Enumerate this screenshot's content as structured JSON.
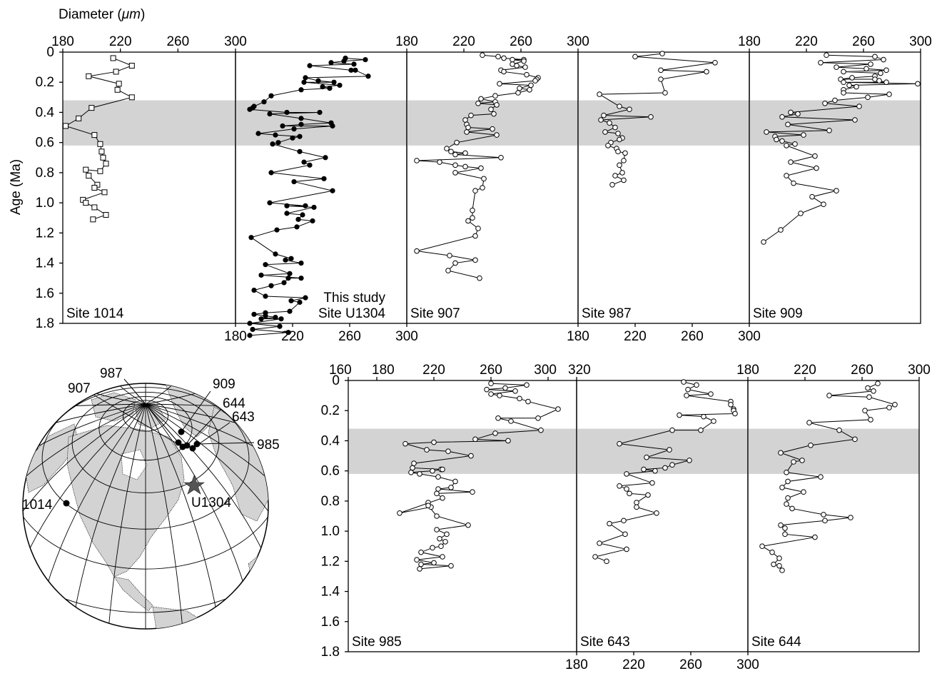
{
  "figure": {
    "x_axis_title": "Diameter",
    "x_axis_unit": "μm",
    "y_axis_title": "Age (Ma)",
    "highlight_band_ma": [
      0.32,
      0.62
    ],
    "band_color": "#d3d3d3"
  },
  "map": {
    "site_labels": [
      "987",
      "907",
      "909",
      "644",
      "643",
      "985",
      "1014",
      "U1304"
    ],
    "land_color": "#d3d3d3",
    "marker_icons": [
      "filled-circle-marker",
      "star-marker"
    ]
  },
  "chart_data": [
    {
      "type": "line",
      "panel": "Site 1014",
      "title": "Site 1014",
      "marker": "open-square",
      "xlim": [
        180,
        300
      ],
      "ylim": [
        0,
        1.8
      ],
      "x_ticks": [
        180,
        220,
        260,
        300
      ],
      "y_ticks": [
        0,
        0.2,
        0.4,
        0.6,
        0.8,
        1.0,
        1.2,
        1.4,
        1.6,
        1.8
      ],
      "x": [
        215,
        228,
        217,
        198,
        219,
        218,
        228,
        200,
        191,
        182,
        202,
        206,
        207,
        208,
        210,
        206,
        196,
        198,
        204,
        202,
        209,
        194,
        196,
        202,
        210,
        201
      ],
      "y": [
        0.04,
        0.09,
        0.13,
        0.16,
        0.21,
        0.25,
        0.3,
        0.37,
        0.44,
        0.49,
        0.55,
        0.61,
        0.66,
        0.7,
        0.74,
        0.79,
        0.78,
        0.82,
        0.88,
        0.9,
        0.93,
        0.98,
        1.0,
        1.03,
        1.08,
        1.11
      ]
    },
    {
      "type": "line",
      "panel": "Site U1304",
      "title": "This study",
      "subtitle": "Site U1304",
      "marker": "filled-circle",
      "xlim": [
        180,
        300
      ],
      "ylim": [
        0,
        1.8
      ],
      "x_ticks": [
        180,
        220,
        260,
        300
      ],
      "x": [
        257,
        271,
        256,
        247,
        263,
        232,
        261,
        264,
        273,
        229,
        238,
        249,
        228,
        253,
        241,
        246,
        226,
        205,
        200,
        193,
        192,
        190,
        216,
        239,
        204,
        226,
        247,
        226,
        213,
        248,
        221,
        196,
        208,
        225,
        220,
        210,
        206,
        225,
        243,
        228,
        232,
        205,
        242,
        221,
        248,
        204,
        229,
        216,
        235,
        216,
        227,
        224,
        234,
        223,
        209,
        191,
        208,
        219,
        215,
        226,
        201,
        218,
        198,
        226,
        217,
        214,
        205,
        193,
        201,
        229,
        219,
        225,
        218,
        201,
        193,
        201,
        208,
        198,
        212,
        190,
        211,
        192,
        217,
        190
      ],
      "y": [
        0.04,
        0.05,
        0.06,
        0.07,
        0.08,
        0.09,
        0.12,
        0.12,
        0.16,
        0.17,
        0.19,
        0.2,
        0.2,
        0.22,
        0.23,
        0.24,
        0.25,
        0.29,
        0.33,
        0.36,
        0.37,
        0.38,
        0.4,
        0.4,
        0.41,
        0.44,
        0.47,
        0.48,
        0.49,
        0.49,
        0.51,
        0.54,
        0.55,
        0.56,
        0.57,
        0.6,
        0.61,
        0.66,
        0.7,
        0.73,
        0.75,
        0.8,
        0.84,
        0.86,
        0.92,
        1.0,
        1.02,
        1.02,
        1.03,
        1.07,
        1.08,
        1.11,
        1.12,
        1.16,
        1.18,
        1.23,
        1.34,
        1.37,
        1.38,
        1.4,
        1.41,
        1.47,
        1.48,
        1.5,
        1.5,
        1.53,
        1.55,
        1.58,
        1.62,
        1.63,
        1.65,
        1.66,
        1.72,
        1.73,
        1.74,
        1.75,
        1.76,
        1.77,
        1.77,
        1.8,
        1.82,
        1.84,
        1.86,
        1.88
      ]
    },
    {
      "type": "line",
      "panel": "Site 907",
      "title": "Site 907",
      "marker": "open-circle",
      "xlim": [
        180,
        300
      ],
      "ylim": [
        0,
        1.8
      ],
      "x_ticks": [
        180,
        220,
        260,
        300
      ],
      "x": [
        233,
        244,
        248,
        262,
        254,
        262,
        254,
        257,
        263,
        246,
        248,
        264,
        272,
        271,
        270,
        245,
        267,
        259,
        266,
        258,
        242,
        232,
        242,
        230,
        243,
        239,
        241,
        225,
        221,
        222,
        223,
        240,
        222,
        243,
        215,
        208,
        211,
        221,
        214,
        246,
        187,
        203,
        214,
        221,
        232,
        214,
        234,
        233,
        228,
        226,
        226,
        223,
        230,
        228,
        187,
        210,
        228,
        214,
        209,
        231
      ],
      "y": [
        0.02,
        0.03,
        0.04,
        0.05,
        0.05,
        0.06,
        0.08,
        0.09,
        0.1,
        0.12,
        0.13,
        0.15,
        0.17,
        0.18,
        0.19,
        0.21,
        0.22,
        0.24,
        0.25,
        0.27,
        0.29,
        0.31,
        0.33,
        0.34,
        0.35,
        0.38,
        0.41,
        0.42,
        0.45,
        0.48,
        0.5,
        0.51,
        0.53,
        0.55,
        0.6,
        0.64,
        0.66,
        0.67,
        0.68,
        0.7,
        0.72,
        0.73,
        0.75,
        0.76,
        0.77,
        0.8,
        0.84,
        0.9,
        0.92,
        1.05,
        1.1,
        1.12,
        1.17,
        1.22,
        1.32,
        1.35,
        1.38,
        1.4,
        1.45,
        1.5
      ]
    },
    {
      "type": "line",
      "panel": "Site 987",
      "title": "Site 987",
      "marker": "open-circle",
      "xlim": [
        180,
        300
      ],
      "ylim": [
        0,
        1.8
      ],
      "x_ticks": [
        180,
        220,
        260,
        300
      ],
      "x": [
        239,
        220,
        276,
        238,
        270,
        238,
        241,
        195,
        209,
        216,
        198,
        231,
        196,
        202,
        206,
        199,
        208,
        211,
        209,
        203,
        201,
        207,
        208,
        213,
        212,
        209,
        211,
        206,
        212,
        204
      ],
      "y": [
        0.01,
        0.03,
        0.07,
        0.12,
        0.13,
        0.18,
        0.27,
        0.28,
        0.36,
        0.38,
        0.42,
        0.43,
        0.45,
        0.47,
        0.5,
        0.53,
        0.54,
        0.57,
        0.58,
        0.6,
        0.62,
        0.64,
        0.66,
        0.67,
        0.72,
        0.75,
        0.8,
        0.82,
        0.85,
        0.88
      ]
    },
    {
      "type": "line",
      "panel": "Site 909",
      "title": "Site 909",
      "marker": "open-circle",
      "xlim": [
        180,
        300
      ],
      "ylim": [
        0,
        1.8
      ],
      "x_ticks": [
        180,
        220,
        260,
        300
      ],
      "x": [
        234,
        268,
        274,
        230,
        265,
        241,
        262,
        276,
        246,
        272,
        268,
        252,
        244,
        268,
        271,
        276,
        246,
        298,
        250,
        255,
        246,
        246,
        278,
        263,
        240,
        233,
        257,
        209,
        214,
        203,
        254,
        207,
        236,
        192,
        218,
        198,
        199,
        203,
        212,
        206,
        226,
        209,
        227,
        206,
        211,
        241,
        224,
        232,
        216,
        202,
        190
      ],
      "y": [
        0.02,
        0.03,
        0.05,
        0.07,
        0.08,
        0.1,
        0.11,
        0.12,
        0.13,
        0.14,
        0.16,
        0.17,
        0.18,
        0.18,
        0.19,
        0.2,
        0.2,
        0.21,
        0.22,
        0.23,
        0.25,
        0.27,
        0.28,
        0.3,
        0.32,
        0.34,
        0.36,
        0.4,
        0.41,
        0.43,
        0.45,
        0.48,
        0.52,
        0.53,
        0.55,
        0.56,
        0.58,
        0.59,
        0.61,
        0.62,
        0.69,
        0.73,
        0.77,
        0.82,
        0.87,
        0.92,
        0.96,
        1.01,
        1.07,
        1.18,
        1.26
      ]
    },
    {
      "type": "line",
      "panel": "Site 985",
      "title": "Site 985",
      "marker": "open-circle",
      "xlim": [
        160,
        320
      ],
      "ylim": [
        0,
        1.8
      ],
      "x_ticks": [
        160,
        180,
        220,
        260,
        300,
        320
      ],
      "y_ticks": [
        0,
        0.2,
        0.4,
        0.6,
        0.8,
        1.0,
        1.2,
        1.4,
        1.6,
        1.8
      ],
      "x": [
        260,
        285,
        270,
        257,
        277,
        260,
        266,
        280,
        286,
        307,
        293,
        265,
        274,
        295,
        263,
        249,
        272,
        220,
        200,
        215,
        230,
        246,
        206,
        205,
        225,
        226,
        219,
        204,
        210,
        223,
        235,
        232,
        223,
        247,
        222,
        226,
        196,
        218,
        216,
        216,
        222,
        244,
        222,
        229,
        224,
        228,
        225,
        219,
        211,
        226,
        208,
        220,
        211,
        232,
        210
      ],
      "y": [
        0.02,
        0.03,
        0.05,
        0.06,
        0.07,
        0.09,
        0.1,
        0.12,
        0.14,
        0.19,
        0.25,
        0.25,
        0.27,
        0.33,
        0.35,
        0.39,
        0.4,
        0.41,
        0.42,
        0.46,
        0.47,
        0.5,
        0.55,
        0.58,
        0.59,
        0.59,
        0.6,
        0.61,
        0.62,
        0.64,
        0.67,
        0.71,
        0.72,
        0.74,
        0.75,
        0.78,
        0.88,
        0.84,
        0.81,
        0.83,
        0.9,
        0.96,
        0.99,
        1.02,
        1.05,
        1.07,
        1.1,
        1.11,
        1.14,
        1.17,
        1.19,
        1.21,
        1.22,
        1.23,
        1.25
      ]
    },
    {
      "type": "line",
      "panel": "Site 643",
      "title": "Site 643",
      "marker": "open-circle",
      "xlim": [
        180,
        300
      ],
      "ylim": [
        0,
        1.8
      ],
      "x_ticks": [
        180,
        220,
        260,
        300
      ],
      "x": [
        255,
        264,
        258,
        274,
        257,
        288,
        288,
        290,
        290,
        291,
        252,
        269,
        276,
        267,
        247,
        210,
        245,
        229,
        259,
        247,
        242,
        227,
        235,
        215,
        233,
        210,
        215,
        217,
        230,
        222,
        222,
        236,
        213,
        203,
        214,
        196,
        215,
        193,
        201
      ],
      "y": [
        0.01,
        0.03,
        0.06,
        0.09,
        0.1,
        0.14,
        0.16,
        0.19,
        0.2,
        0.22,
        0.23,
        0.24,
        0.27,
        0.33,
        0.33,
        0.42,
        0.46,
        0.51,
        0.53,
        0.56,
        0.58,
        0.59,
        0.6,
        0.62,
        0.68,
        0.7,
        0.72,
        0.75,
        0.76,
        0.81,
        0.84,
        0.88,
        0.93,
        0.95,
        1.02,
        1.08,
        1.12,
        1.17,
        1.2
      ]
    },
    {
      "type": "line",
      "panel": "Site 644",
      "title": "Site 644",
      "marker": "open-circle",
      "xlim": [
        180,
        300
      ],
      "ylim": [
        0,
        1.8
      ],
      "x_ticks": [
        180,
        220,
        260,
        300
      ],
      "x": [
        271,
        264,
        268,
        237,
        265,
        283,
        279,
        262,
        266,
        223,
        244,
        255,
        224,
        203,
        218,
        212,
        207,
        231,
        208,
        204,
        219,
        208,
        207,
        211,
        233,
        252,
        234,
        203,
        206,
        206,
        227,
        190,
        197,
        202,
        198,
        202,
        204
      ],
      "y": [
        0.02,
        0.05,
        0.07,
        0.1,
        0.11,
        0.16,
        0.18,
        0.2,
        0.26,
        0.28,
        0.33,
        0.39,
        0.43,
        0.48,
        0.53,
        0.54,
        0.61,
        0.64,
        0.67,
        0.71,
        0.74,
        0.78,
        0.82,
        0.85,
        0.89,
        0.91,
        0.93,
        0.96,
        0.98,
        1.02,
        1.04,
        1.1,
        1.14,
        1.18,
        1.22,
        1.23,
        1.26
      ]
    }
  ]
}
